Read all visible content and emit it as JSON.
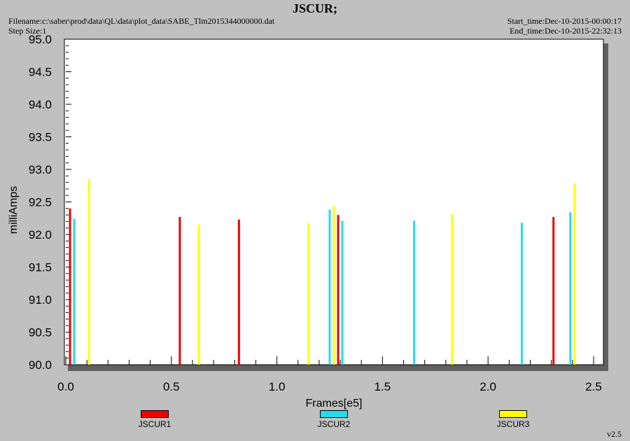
{
  "header": {
    "title": "JSCUR;",
    "filename": "Filename:c:\\saber\\prod\\data\\QL\\data\\plot_data\\SABE_Tlm2015344000000.dat",
    "step_size": "Step Size:1",
    "start_time": "Start_time:Dec-10-2015-00:00:17",
    "end_time": "End_time:Dec-10-2015-22:32:13",
    "version": "v2.5"
  },
  "chart_data": {
    "type": "bar",
    "xlabel": "Frames[e5]",
    "ylabel": "milliAmps",
    "xlim": [
      0,
      2.5
    ],
    "ylim": [
      90.0,
      95.0
    ],
    "xticks": [
      "0.0",
      "0.5",
      "1.0",
      "1.5",
      "2.0",
      "2.5"
    ],
    "yticks": [
      "90.0",
      "90.5",
      "91.0",
      "91.5",
      "92.0",
      "92.5",
      "93.0",
      "93.5",
      "94.0",
      "94.5",
      "95.0"
    ],
    "grid": false,
    "legend_position": "bottom",
    "series": [
      {
        "name": "JSCUR1",
        "color": "#ee0000",
        "points": [
          [
            0.02,
            92.4
          ],
          [
            0.54,
            92.27
          ],
          [
            0.82,
            92.23
          ],
          [
            1.29,
            92.3
          ],
          [
            2.31,
            92.27
          ]
        ]
      },
      {
        "name": "JSCUR2",
        "color": "#22dded",
        "points": [
          [
            0.04,
            92.24
          ],
          [
            1.25,
            92.38
          ],
          [
            1.31,
            92.21
          ],
          [
            1.65,
            92.21
          ],
          [
            2.16,
            92.18
          ],
          [
            2.39,
            92.34
          ]
        ]
      },
      {
        "name": "JSCUR3",
        "color": "#ffff00",
        "points": [
          [
            0.11,
            92.85
          ],
          [
            0.63,
            92.15
          ],
          [
            1.15,
            92.18
          ],
          [
            1.27,
            92.44
          ],
          [
            1.83,
            92.31
          ],
          [
            2.41,
            92.79
          ]
        ]
      }
    ]
  }
}
